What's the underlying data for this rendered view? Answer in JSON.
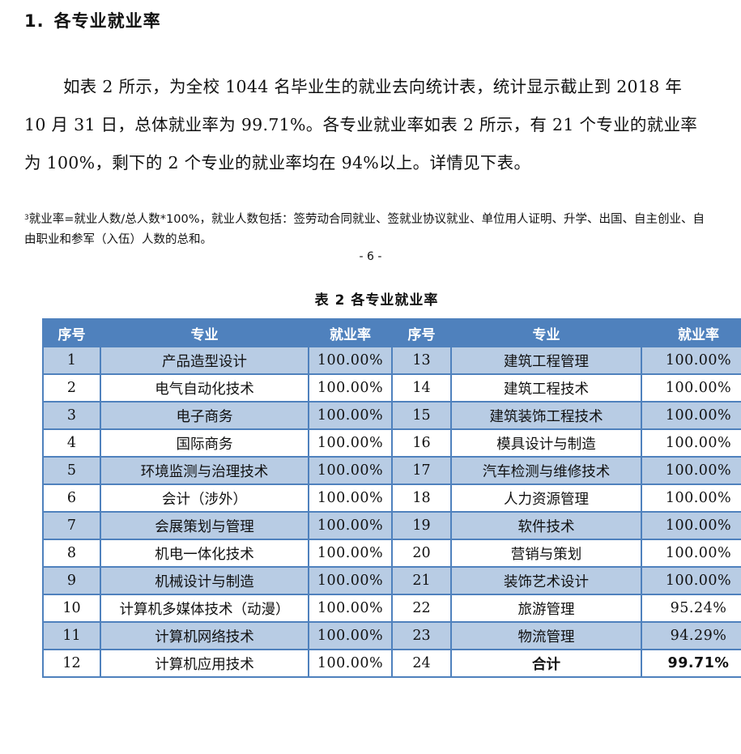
{
  "heading": {
    "number": "1.",
    "title": "各专业就业率"
  },
  "paragraph": "如表 2 所示，为全校 1044 名毕业生的就业去向统计表，统计显示截止到 2018 年 10 月 31 日，总体就业率为 99.71%。各专业就业率如表 2 所示，有 21 个专业的就业率为 100%，剩下的 2 个专业的就业率均在 94%以上。详情见下表。",
  "footnote": {
    "marker": "3",
    "text": "就业率=就业人数/总人数*100%，就业人数包括：签劳动合同就业、签就业协议就业、单位用人证明、升学、出国、自主创业、自由职业和参军（入伍）人数的总和。"
  },
  "page_number": "- 6 -",
  "table": {
    "caption": "表 2 各专业就业率",
    "headers": [
      "序号",
      "专业",
      "就业率",
      "序号",
      "专业",
      "就业率"
    ],
    "header_color": "#4f81bd",
    "stripe_color": "#b8cce4",
    "rows": [
      {
        "left": {
          "no": "1",
          "major": "产品造型设计",
          "rate": "100.00%"
        },
        "right": {
          "no": "13",
          "major": "建筑工程管理",
          "rate": "100.00%"
        }
      },
      {
        "left": {
          "no": "2",
          "major": "电气自动化技术",
          "rate": "100.00%"
        },
        "right": {
          "no": "14",
          "major": "建筑工程技术",
          "rate": "100.00%"
        }
      },
      {
        "left": {
          "no": "3",
          "major": "电子商务",
          "rate": "100.00%"
        },
        "right": {
          "no": "15",
          "major": "建筑装饰工程技术",
          "rate": "100.00%"
        }
      },
      {
        "left": {
          "no": "4",
          "major": "国际商务",
          "rate": "100.00%"
        },
        "right": {
          "no": "16",
          "major": "模具设计与制造",
          "rate": "100.00%"
        }
      },
      {
        "left": {
          "no": "5",
          "major": "环境监测与治理技术",
          "rate": "100.00%"
        },
        "right": {
          "no": "17",
          "major": "汽车检测与维修技术",
          "rate": "100.00%"
        }
      },
      {
        "left": {
          "no": "6",
          "major": "会计（涉外）",
          "rate": "100.00%"
        },
        "right": {
          "no": "18",
          "major": "人力资源管理",
          "rate": "100.00%"
        }
      },
      {
        "left": {
          "no": "7",
          "major": "会展策划与管理",
          "rate": "100.00%"
        },
        "right": {
          "no": "19",
          "major": "软件技术",
          "rate": "100.00%"
        }
      },
      {
        "left": {
          "no": "8",
          "major": "机电一体化技术",
          "rate": "100.00%"
        },
        "right": {
          "no": "20",
          "major": "营销与策划",
          "rate": "100.00%"
        }
      },
      {
        "left": {
          "no": "9",
          "major": "机械设计与制造",
          "rate": "100.00%"
        },
        "right": {
          "no": "21",
          "major": "装饰艺术设计",
          "rate": "100.00%"
        }
      },
      {
        "left": {
          "no": "10",
          "major": "计算机多媒体技术（动漫）",
          "rate": "100.00%"
        },
        "right": {
          "no": "22",
          "major": "旅游管理",
          "rate": "95.24%"
        }
      },
      {
        "left": {
          "no": "11",
          "major": "计算机网络技术",
          "rate": "100.00%"
        },
        "right": {
          "no": "23",
          "major": "物流管理",
          "rate": "94.29%"
        }
      },
      {
        "left": {
          "no": "12",
          "major": "计算机应用技术",
          "rate": "100.00%"
        },
        "right": {
          "no": "24",
          "major": "合计",
          "rate": "99.71%"
        }
      }
    ]
  }
}
